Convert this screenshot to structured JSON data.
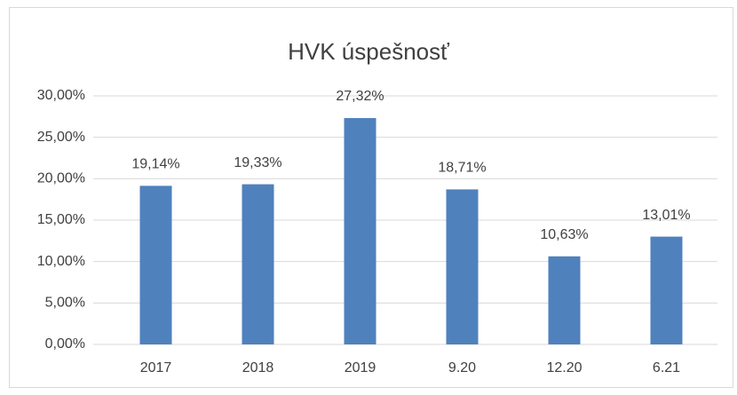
{
  "chart_data": {
    "type": "bar",
    "title": "HVK úspešnosť",
    "categories": [
      "2017",
      "2018",
      "2019",
      "9.20",
      "12.20",
      "6.21"
    ],
    "values": [
      19.14,
      19.33,
      27.32,
      18.71,
      10.63,
      13.01
    ],
    "value_labels": [
      "19,14%",
      "19,33%",
      "27,32%",
      "18,71%",
      "10,63%",
      "13,01%"
    ],
    "color": "#4f81bd",
    "ylim": [
      0,
      30
    ],
    "yticks": [
      {
        "value": 0,
        "label": "0,00%"
      },
      {
        "value": 5,
        "label": "5,00%"
      },
      {
        "value": 10,
        "label": "10,00%"
      },
      {
        "value": 15,
        "label": "15,00%"
      },
      {
        "value": 20,
        "label": "20,00%"
      },
      {
        "value": 25,
        "label": "25,00%"
      },
      {
        "value": 30,
        "label": "30,00%"
      }
    ],
    "grid": true
  }
}
